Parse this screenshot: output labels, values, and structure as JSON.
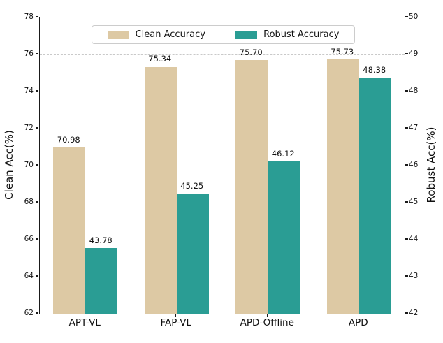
{
  "chart_data": {
    "type": "bar",
    "categories": [
      "APT-VL",
      "FAP-VL",
      "APD-Offline",
      "APD"
    ],
    "series": [
      {
        "name": "Clean Accuracy",
        "axis": "left",
        "color": "#ddc9a4",
        "values": [
          70.98,
          75.34,
          75.7,
          75.73
        ],
        "value_labels": [
          "70.98",
          "75.34",
          "75.70",
          "75.73"
        ]
      },
      {
        "name": "Robust Accuracy",
        "axis": "right",
        "color": "#2a9d94",
        "values": [
          43.78,
          45.25,
          46.12,
          48.38
        ],
        "value_labels": [
          "43.78",
          "45.25",
          "46.12",
          "48.38"
        ]
      }
    ],
    "left_axis": {
      "label": "Clean Acc(%)",
      "min": 62,
      "max": 78,
      "step": 2
    },
    "right_axis": {
      "label": "Robust Acc(%)",
      "min": 42,
      "max": 50,
      "step": 1
    },
    "grid": true,
    "legend_position": "top-center",
    "title": ""
  },
  "style": {
    "grid_color": "#c9c9c9",
    "spine_color": "#1a1a1a",
    "text_color": "#111111",
    "background": "#ffffff"
  }
}
